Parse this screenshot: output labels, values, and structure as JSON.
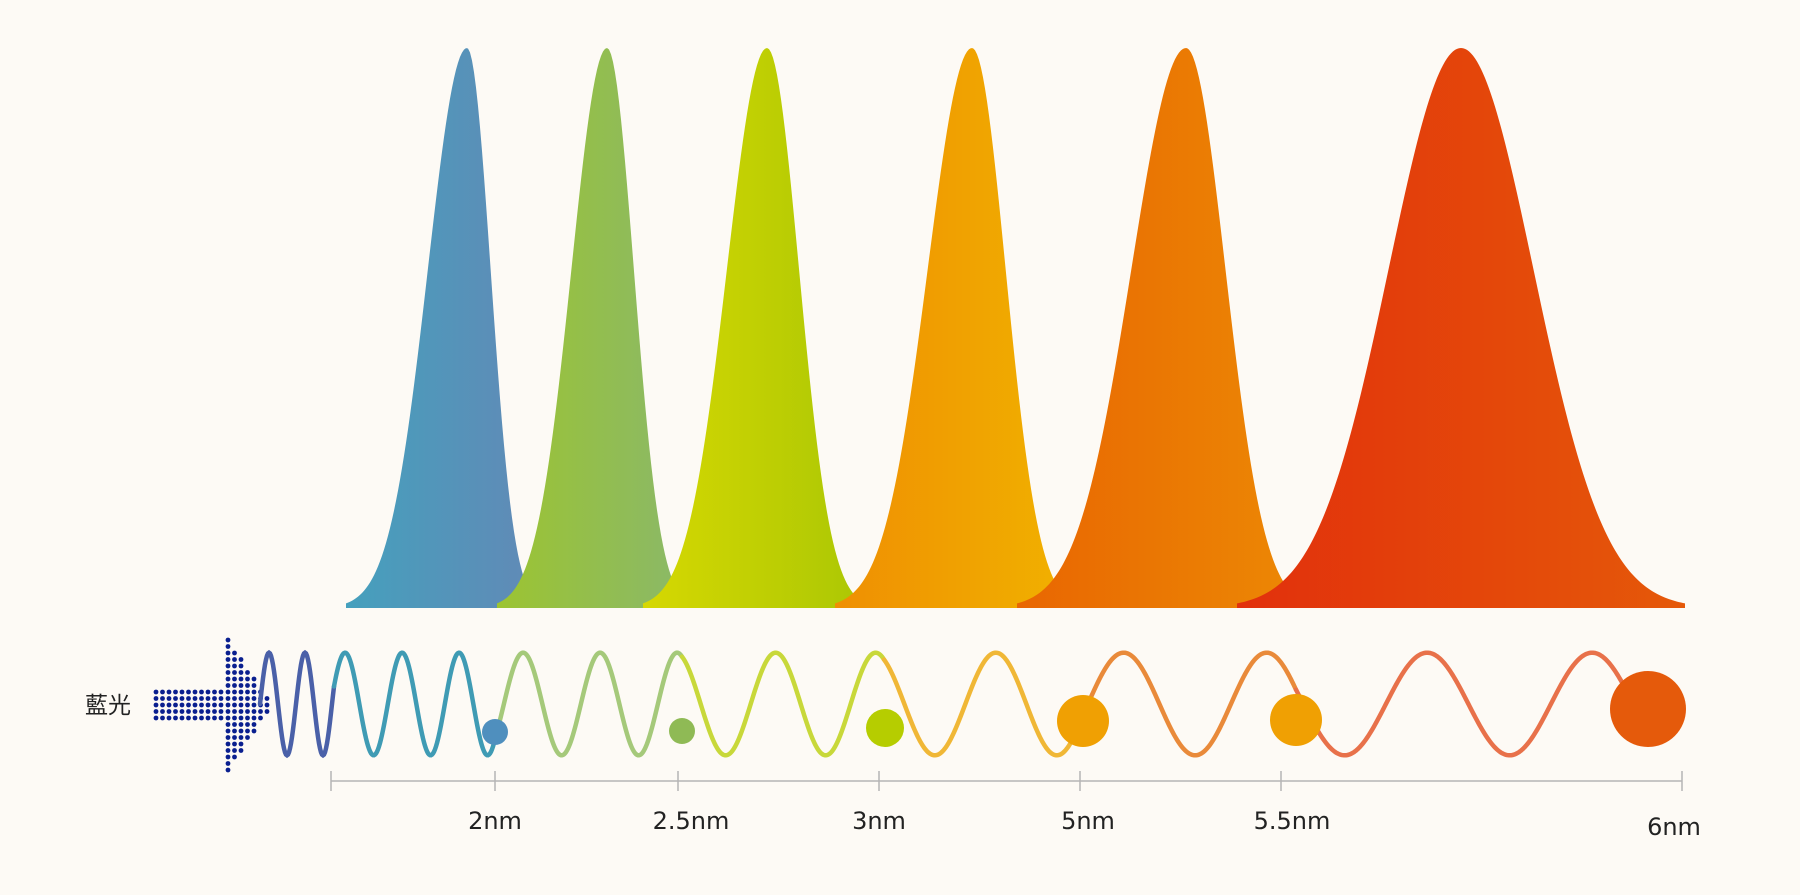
{
  "source_label": "藍光",
  "peaks": [
    {
      "color_left": "#45a0bd",
      "color_right": "#6289b6"
    },
    {
      "color_left": "#9cc431",
      "color_right": "#8ab86a"
    },
    {
      "color_left": "#d6d802",
      "color_right": "#abc704"
    },
    {
      "color_left": "#ef8f02",
      "color_right": "#f1b200"
    },
    {
      "color_left": "#e96602",
      "color_right": "#ec8904"
    },
    {
      "color_left": "#e2300c",
      "color_right": "#e55909"
    }
  ],
  "wave_segment_colors": [
    "#4a60a8",
    "#3f9bb4",
    "#a5c97a",
    "#c8d83a",
    "#f0b736",
    "#e98a3a",
    "#e8714a"
  ],
  "markers": [
    {
      "color": "#4f8fbe",
      "size": "small"
    },
    {
      "color": "#8fba55",
      "size": "small"
    },
    {
      "color": "#b6cd00",
      "size": "medium"
    },
    {
      "color": "#f0a003",
      "size": "large"
    },
    {
      "color": "#f0a003",
      "size": "large"
    },
    {
      "color": "#e55a0b",
      "size": "xlarge"
    }
  ],
  "scale_labels": [
    "2nm",
    "2.5nm",
    "3nm",
    "5nm",
    "5.5nm",
    "6nm"
  ],
  "arrow_color": "#0a1f8f"
}
